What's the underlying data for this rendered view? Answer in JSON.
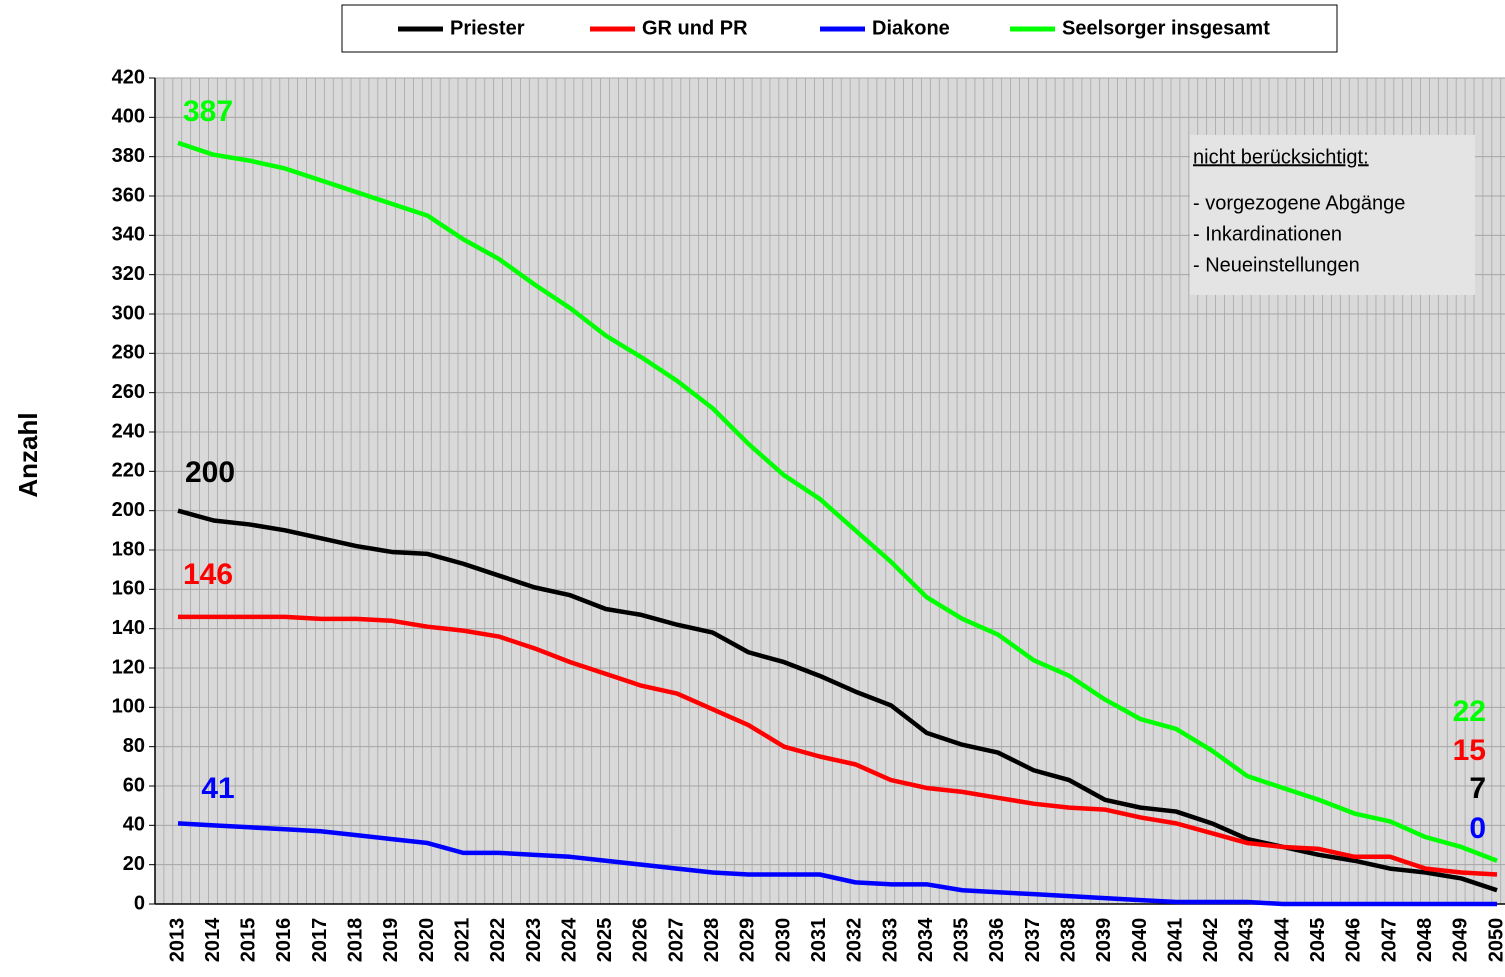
{
  "chart_data": {
    "type": "line",
    "y_label": "Anzahl",
    "categories": [
      "2013",
      "2014",
      "2015",
      "2016",
      "2017",
      "2018",
      "2019",
      "2020",
      "2021",
      "2022",
      "2023",
      "2024",
      "2025",
      "2026",
      "2027",
      "2028",
      "2029",
      "2030",
      "2031",
      "2032",
      "2033",
      "2034",
      "2035",
      "2036",
      "2037",
      "2038",
      "2039",
      "2040",
      "2041",
      "2042",
      "2043",
      "2044",
      "2045",
      "2046",
      "2047",
      "2048",
      "2049",
      "2050"
    ],
    "series": [
      {
        "name": "Priester",
        "color": "#000000",
        "values": [
          200,
          195,
          193,
          190,
          186,
          182,
          179,
          178,
          173,
          167,
          161,
          157,
          150,
          147,
          142,
          138,
          128,
          123,
          116,
          108,
          101,
          87,
          81,
          77,
          68,
          63,
          53,
          49,
          47,
          41,
          33,
          29,
          25,
          22,
          18,
          16,
          13,
          7
        ]
      },
      {
        "name": "GR und PR",
        "color": "#ff0000",
        "values": [
          146,
          146,
          146,
          146,
          145,
          145,
          144,
          141,
          139,
          136,
          130,
          123,
          117,
          111,
          107,
          99,
          91,
          80,
          75,
          71,
          63,
          59,
          57,
          54,
          51,
          49,
          48,
          44,
          41,
          36,
          31,
          29,
          28,
          24,
          24,
          18,
          16,
          15
        ]
      },
      {
        "name": "Diakone",
        "color": "#0000ff",
        "values": [
          41,
          40,
          39,
          38,
          37,
          35,
          33,
          31,
          26,
          26,
          25,
          24,
          22,
          20,
          18,
          16,
          15,
          15,
          15,
          11,
          10,
          10,
          7,
          6,
          5,
          4,
          3,
          2,
          1,
          1,
          1,
          0,
          0,
          0,
          0,
          0,
          0,
          0
        ]
      },
      {
        "name": "Seelsorger insgesamt",
        "color": "#00ff00",
        "values": [
          387,
          381,
          378,
          374,
          368,
          362,
          356,
          350,
          338,
          328,
          315,
          303,
          289,
          278,
          266,
          252,
          234,
          218,
          206,
          190,
          174,
          156,
          145,
          137,
          124,
          116,
          104,
          94,
          89,
          78,
          65,
          59,
          53,
          46,
          42,
          34,
          29,
          22
        ]
      }
    ],
    "ylim": [
      0,
      420
    ],
    "yticks": [
      0,
      20,
      40,
      60,
      80,
      100,
      120,
      140,
      160,
      180,
      200,
      220,
      240,
      260,
      280,
      300,
      320,
      340,
      360,
      380,
      400,
      420
    ],
    "grid": true,
    "legend": "top",
    "annotations": {
      "note_title": "nicht berücksichtigt:",
      "note_items": [
        "- vorgezogene Abgänge",
        "- Inkardinationen",
        "- Neueinstellungen"
      ]
    }
  }
}
